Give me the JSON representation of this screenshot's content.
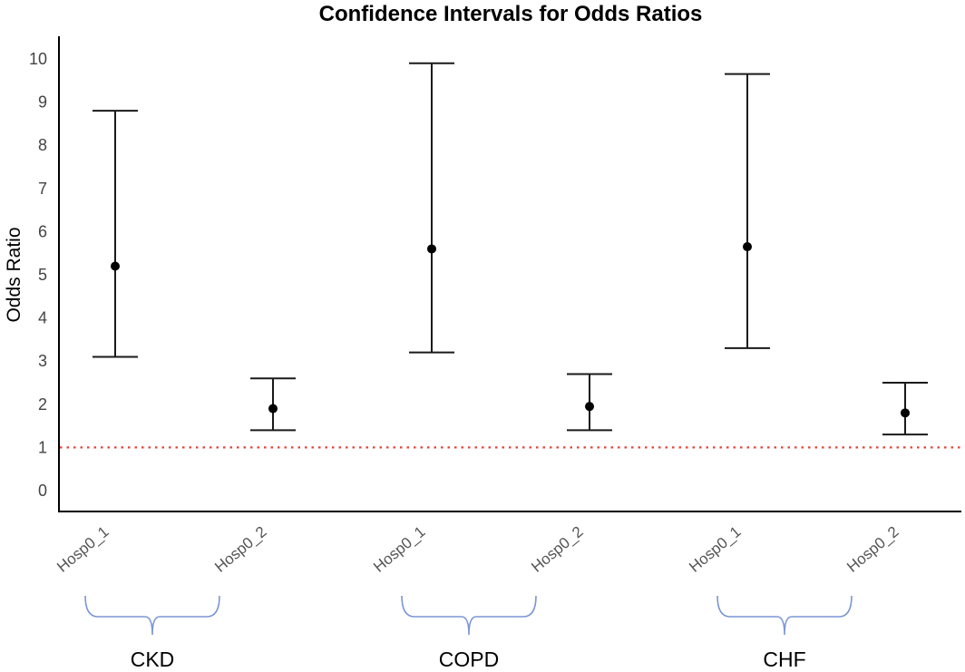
{
  "chart_data": {
    "type": "errorbar",
    "title": "Confidence Intervals for Odds Ratios",
    "xlabel": "",
    "ylabel": "Odds Ratio",
    "ylim": [
      -0.5,
      10.5
    ],
    "yticks": [
      0,
      1,
      2,
      3,
      4,
      5,
      6,
      7,
      8,
      9,
      10
    ],
    "reference_line": {
      "y": 1,
      "style": "dotted",
      "color": "#e2453c"
    },
    "categories": [
      "Hosp0_1",
      "Hosp0_2",
      "Hosp0_1",
      "Hosp0_2",
      "Hosp0_1",
      "Hosp0_2"
    ],
    "points": [
      {
        "group": "CKD",
        "category": "Hosp0_1",
        "estimate": 5.2,
        "lower": 3.1,
        "upper": 8.8
      },
      {
        "group": "CKD",
        "category": "Hosp0_2",
        "estimate": 1.9,
        "lower": 1.4,
        "upper": 2.6
      },
      {
        "group": "COPD",
        "category": "Hosp0_1",
        "estimate": 5.6,
        "lower": 3.2,
        "upper": 9.9
      },
      {
        "group": "COPD",
        "category": "Hosp0_2",
        "estimate": 1.95,
        "lower": 1.4,
        "upper": 2.7
      },
      {
        "group": "CHF",
        "category": "Hosp0_1",
        "estimate": 5.65,
        "lower": 3.3,
        "upper": 9.65
      },
      {
        "group": "CHF",
        "category": "Hosp0_2",
        "estimate": 1.8,
        "lower": 1.3,
        "upper": 2.5
      }
    ],
    "groups": [
      {
        "label": "CKD",
        "categories": [
          0,
          1
        ]
      },
      {
        "label": "COPD",
        "categories": [
          2,
          3
        ]
      },
      {
        "label": "CHF",
        "categories": [
          4,
          5
        ]
      }
    ],
    "colors": {
      "marker": "#000000",
      "error_bar": "#1a1a1a",
      "brace": "#7a96d6"
    }
  }
}
